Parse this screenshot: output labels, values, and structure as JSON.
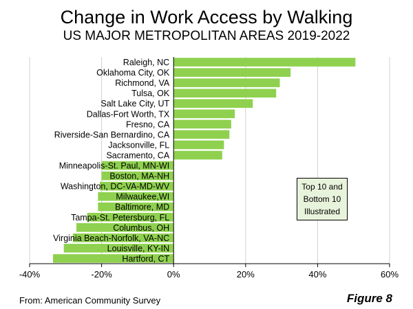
{
  "title": "Change in Work Access by Walking",
  "subtitle": "US MAJOR METROPOLITAN AREAS 2019-2022",
  "source": "From: American Community Survey",
  "figure_label": "Figure 8",
  "note_lines": [
    "Top 10 and",
    "Bottom 10",
    "Illustrated"
  ],
  "colors": {
    "bar": "#8fd14f",
    "axis": "#000000"
  },
  "chart_data": {
    "type": "bar",
    "orientation": "horizontal",
    "categories": [
      "Raleigh, NC",
      "Oklahoma City, OK",
      "Richmond, VA",
      "Tulsa, OK",
      "Salt Lake City, UT",
      "Dallas-Fort Worth, TX",
      "Fresno, CA",
      "Riverside-San Bernardino, CA",
      "Jacksonville, FL",
      "Sacramento, CA",
      "Minneapolis-St. Paul, MN-WI",
      "Boston, MA-NH",
      "Washington, DC-VA-MD-WV",
      "Milwaukee,WI",
      "Baltimore, MD",
      "Tampa-St. Petersburg, FL",
      "Columbus, OH",
      "Virginia Beach-Norfolk, VA-NC",
      "Louisville, KY-IN",
      "Hartford, CT"
    ],
    "values": [
      50.5,
      32.5,
      29.5,
      28.5,
      22,
      17,
      16,
      15.5,
      14,
      13.5,
      -20,
      -20,
      -20.5,
      -21,
      -21,
      -24,
      -27,
      -28,
      -30.5,
      -33.5
    ],
    "unit": "%",
    "xlim": [
      -40,
      60
    ],
    "xticks": [
      "-40%",
      "-20%",
      "0%",
      "20%",
      "40%",
      "60%"
    ],
    "xtick_values": [
      -40,
      -20,
      0,
      20,
      40,
      60
    ],
    "grid": true,
    "legend": "none"
  }
}
